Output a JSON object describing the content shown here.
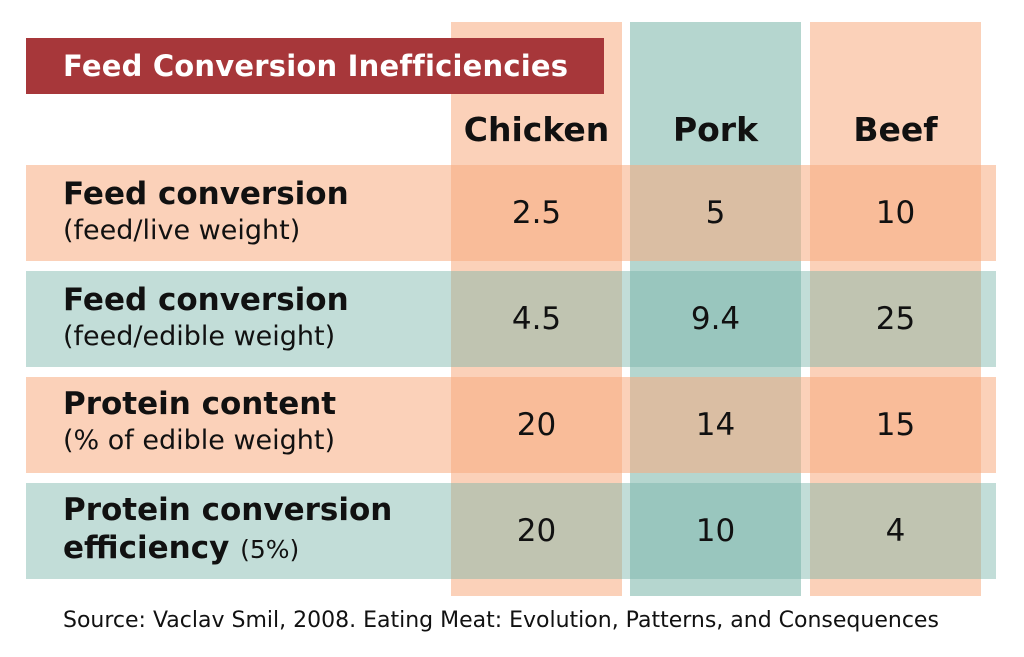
{
  "title": "Feed Conversion Inefficiencies",
  "source": "Source: Vaclav Smil, 2008. Eating Meat: Evolution, Patterns, and Consequences",
  "colors": {
    "title_banner": "#a7373a",
    "peach": "#f7ac80",
    "teal": "#78b4a8"
  },
  "chart_data": {
    "type": "table",
    "title": "Feed Conversion Inefficiencies",
    "columns": [
      "Chicken",
      "Pork",
      "Beef"
    ],
    "rows": [
      {
        "label": "Feed conversion",
        "sublabel": "(feed/live weight)",
        "values": [
          "2.5",
          "5",
          "10"
        ]
      },
      {
        "label": "Feed conversion",
        "sublabel": "(feed/edible weight)",
        "values": [
          "4.5",
          "9.4",
          "25"
        ]
      },
      {
        "label": "Protein content",
        "sublabel": "(% of edible weight)",
        "values": [
          "20",
          "14",
          "15"
        ]
      },
      {
        "label": "Protein conversion",
        "label2": "efficiency",
        "inline_sublabel": "(5%)",
        "values": [
          "20",
          "10",
          "4"
        ]
      }
    ]
  }
}
